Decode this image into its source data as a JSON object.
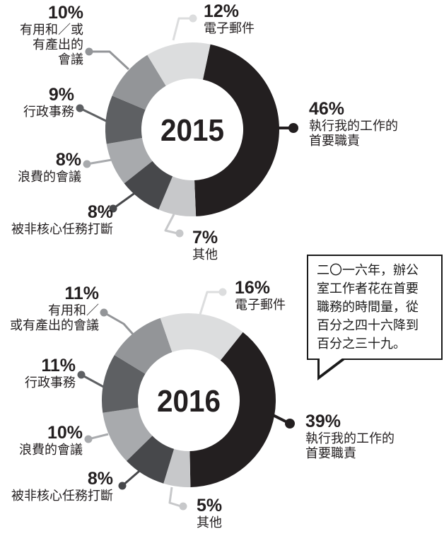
{
  "chart_data": [
    {
      "type": "donut",
      "title": "2015",
      "start_angle_deg": 12,
      "segments": [
        {
          "id": "primary",
          "label": "執行我的工作的首要職責",
          "pct": 46,
          "pct_label": "46%",
          "color": "#231f20",
          "label_lines": [
            "執行我的工作的",
            "首要職責"
          ]
        },
        {
          "id": "other",
          "label": "其他",
          "pct": 7,
          "pct_label": "7%",
          "color": "#c7c8ca",
          "label_lines": [
            "其他"
          ]
        },
        {
          "id": "interrupted",
          "label": "被非核心任務打斷",
          "pct": 8,
          "pct_label": "8%",
          "color": "#47484b",
          "label_lines": [
            "被非核心任務打斷"
          ]
        },
        {
          "id": "wasted",
          "label": "浪費的會議",
          "pct": 8,
          "pct_label": "8%",
          "color": "#a8aaad",
          "label_lines": [
            "浪費的會議"
          ]
        },
        {
          "id": "admin",
          "label": "行政事務",
          "pct": 9,
          "pct_label": "9%",
          "color": "#5e6063",
          "label_lines": [
            "行政事務"
          ]
        },
        {
          "id": "useful",
          "label": "有用和／或有產出的會議",
          "pct": 10,
          "pct_label": "10%",
          "color": "#939598",
          "label_lines": [
            "有用和／或",
            "有產出的",
            "會議"
          ]
        },
        {
          "id": "email",
          "label": "電子郵件",
          "pct": 12,
          "pct_label": "12%",
          "color": "#dcddde",
          "label_lines": [
            "電子郵件"
          ]
        }
      ]
    },
    {
      "type": "donut",
      "title": "2016",
      "start_angle_deg": 38.5,
      "segments": [
        {
          "id": "primary",
          "label": "執行我的工作的首要職責",
          "pct": 39,
          "pct_label": "39%",
          "color": "#231f20",
          "label_lines": [
            "執行我的工作的",
            "首要職責"
          ]
        },
        {
          "id": "other",
          "label": "其他",
          "pct": 5,
          "pct_label": "5%",
          "color": "#c7c8ca",
          "label_lines": [
            "其他"
          ]
        },
        {
          "id": "interrupted",
          "label": "被非核心任務打斷",
          "pct": 8,
          "pct_label": "8%",
          "color": "#47484b",
          "label_lines": [
            "被非核心任務打斷"
          ]
        },
        {
          "id": "wasted",
          "label": "浪費的會議",
          "pct": 10,
          "pct_label": "10%",
          "color": "#a8aaad",
          "label_lines": [
            "浪費的會議"
          ]
        },
        {
          "id": "admin",
          "label": "行政事務",
          "pct": 11,
          "pct_label": "11%",
          "color": "#5e6063",
          "label_lines": [
            "行政事務"
          ]
        },
        {
          "id": "useful",
          "label": "有用和／或有產出的會議",
          "pct": 11,
          "pct_label": "11%",
          "color": "#939598",
          "label_lines": [
            "有用和／",
            "或有產出的會議"
          ]
        },
        {
          "id": "email",
          "label": "電子郵件",
          "pct": 16,
          "pct_label": "16%",
          "color": "#dcddde",
          "label_lines": [
            "電子郵件"
          ]
        }
      ]
    }
  ],
  "callout": {
    "lines": [
      "二〇一六年，辦公",
      "室工作者花在首要",
      "職務的時間量，從",
      "百分之四十六降到",
      "百分之三十九。"
    ]
  }
}
